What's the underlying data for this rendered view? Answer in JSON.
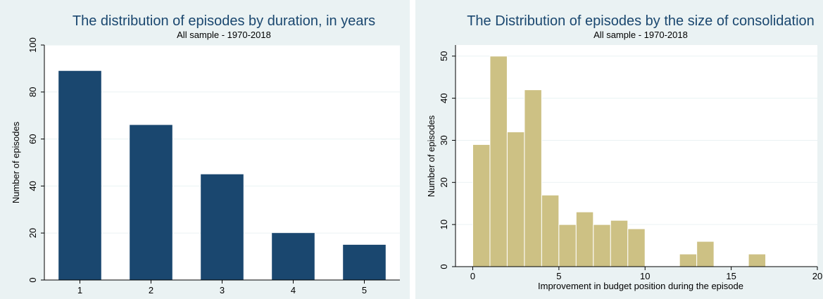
{
  "colors": {
    "background": "#eaf2f3",
    "plot": "#ffffff",
    "bar_left": "#1a476f",
    "bar_right": "#cdc184",
    "title": "#1a476f",
    "grid": "#eaf2f3"
  },
  "chart_data": [
    {
      "type": "bar",
      "title": "The distribution of episodes by duration, in years",
      "subtitle": "All sample - 1970-2018",
      "xlabel": "",
      "ylabel": "Number of episodes",
      "categories": [
        "1",
        "2",
        "3",
        "4",
        "5"
      ],
      "values": [
        89,
        66,
        45,
        20,
        15
      ],
      "ylim": [
        0,
        100
      ],
      "yticks": [
        0,
        20,
        40,
        60,
        80,
        100
      ],
      "grid": true
    },
    {
      "type": "bar",
      "title": "The Distribution of episodes by the size of consolidation",
      "subtitle": "All sample - 1970-2018",
      "xlabel": "Improvement in budget position during the episode",
      "ylabel": "Number of episodes",
      "bin_width": 1,
      "bins": [
        {
          "x": 0,
          "value": 29
        },
        {
          "x": 1,
          "value": 50
        },
        {
          "x": 2,
          "value": 32
        },
        {
          "x": 3,
          "value": 42
        },
        {
          "x": 4,
          "value": 17
        },
        {
          "x": 5,
          "value": 10
        },
        {
          "x": 6,
          "value": 13
        },
        {
          "x": 7,
          "value": 10
        },
        {
          "x": 8,
          "value": 11
        },
        {
          "x": 9,
          "value": 9
        },
        {
          "x": 12,
          "value": 3
        },
        {
          "x": 13,
          "value": 6
        },
        {
          "x": 16,
          "value": 3
        }
      ],
      "xlim": [
        -1,
        20
      ],
      "xticks": [
        0,
        5,
        10,
        15,
        20
      ],
      "ylim": [
        0,
        50
      ],
      "yticks": [
        0,
        10,
        20,
        30,
        40,
        50
      ],
      "grid": true
    }
  ]
}
